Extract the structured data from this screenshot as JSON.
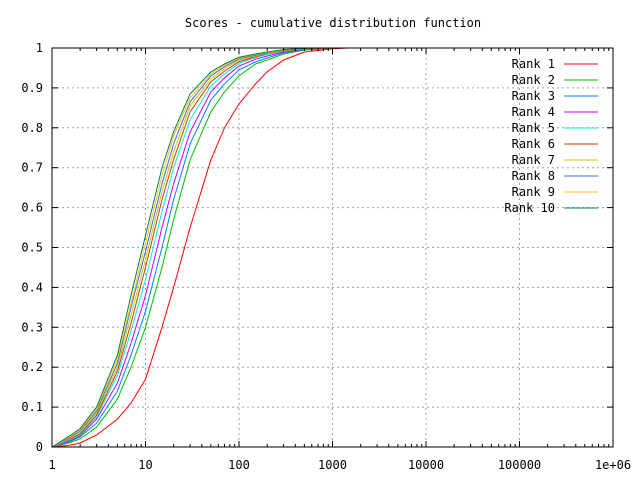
{
  "chart_data": {
    "type": "line",
    "title": "Scores - cumulative distribution function",
    "xlabel": "",
    "ylabel": "",
    "x_scale": "log",
    "xlim": [
      1,
      1000000
    ],
    "ylim": [
      0,
      1
    ],
    "grid": true,
    "legend_position": "top-right",
    "x_ticks": [
      "1",
      "10",
      "100",
      "1000",
      "10000",
      "100000",
      "1e+06"
    ],
    "y_ticks": [
      "0",
      "0.1",
      "0.2",
      "0.3",
      "0.4",
      "0.5",
      "0.6",
      "0.7",
      "0.8",
      "0.9",
      "1"
    ],
    "series": [
      {
        "name": "Rank 1",
        "color": "#ff0000",
        "x": [
          1,
          1.5,
          2,
          3,
          5,
          7,
          10,
          15,
          20,
          30,
          50,
          70,
          100,
          150,
          200,
          300,
          500,
          1000,
          1500
        ],
        "y": [
          0,
          0.004,
          0.01,
          0.03,
          0.07,
          0.11,
          0.17,
          0.3,
          0.4,
          0.55,
          0.72,
          0.8,
          0.86,
          0.91,
          0.94,
          0.97,
          0.99,
          0.998,
          1
        ]
      },
      {
        "name": "Rank 2",
        "color": "#00c000",
        "x": [
          1,
          1.5,
          2,
          3,
          5,
          7,
          10,
          15,
          20,
          30,
          50,
          70,
          100,
          150,
          200,
          300,
          500,
          1000,
          1500
        ],
        "y": [
          0,
          0.01,
          0.02,
          0.05,
          0.12,
          0.2,
          0.3,
          0.45,
          0.57,
          0.72,
          0.84,
          0.89,
          0.93,
          0.96,
          0.97,
          0.985,
          0.995,
          1,
          1
        ]
      },
      {
        "name": "Rank 3",
        "color": "#0080ff",
        "x": [
          1,
          1.5,
          2,
          3,
          5,
          7,
          10,
          15,
          20,
          30,
          50,
          70,
          100,
          150,
          200,
          300,
          500,
          1000,
          1500
        ],
        "y": [
          0,
          0.012,
          0.025,
          0.06,
          0.14,
          0.23,
          0.34,
          0.5,
          0.62,
          0.76,
          0.87,
          0.91,
          0.945,
          0.965,
          0.975,
          0.988,
          0.996,
          1,
          1
        ]
      },
      {
        "name": "Rank 4",
        "color": "#c000ff",
        "x": [
          1,
          1.5,
          2,
          3,
          5,
          7,
          10,
          15,
          20,
          30,
          50,
          70,
          100,
          150,
          200,
          300,
          500,
          1000,
          1500
        ],
        "y": [
          0,
          0.014,
          0.028,
          0.07,
          0.16,
          0.26,
          0.38,
          0.55,
          0.66,
          0.79,
          0.89,
          0.925,
          0.955,
          0.972,
          0.98,
          0.99,
          0.997,
          1,
          1
        ]
      },
      {
        "name": "Rank 5",
        "color": "#00eeee",
        "x": [
          1,
          1.5,
          2,
          3,
          5,
          7,
          10,
          15,
          20,
          30,
          50,
          70,
          100,
          150,
          200,
          300,
          500,
          1000,
          1500
        ],
        "y": [
          0,
          0.016,
          0.03,
          0.075,
          0.18,
          0.29,
          0.42,
          0.59,
          0.7,
          0.82,
          0.905,
          0.935,
          0.962,
          0.976,
          0.984,
          0.992,
          0.998,
          1,
          1
        ]
      },
      {
        "name": "Rank 6",
        "color": "#c04000",
        "x": [
          1,
          1.5,
          2,
          3,
          5,
          7,
          10,
          15,
          20,
          30,
          50,
          70,
          100,
          150,
          200,
          300,
          500,
          1000,
          1500
        ],
        "y": [
          0,
          0.018,
          0.033,
          0.08,
          0.19,
          0.31,
          0.45,
          0.62,
          0.72,
          0.84,
          0.915,
          0.942,
          0.966,
          0.978,
          0.986,
          0.993,
          0.998,
          1,
          1
        ]
      },
      {
        "name": "Rank 7",
        "color": "#c8c800",
        "x": [
          1,
          1.5,
          2,
          3,
          5,
          7,
          10,
          15,
          20,
          30,
          50,
          70,
          100,
          150,
          200,
          300,
          500,
          1000,
          1500
        ],
        "y": [
          0,
          0.02,
          0.036,
          0.085,
          0.2,
          0.33,
          0.47,
          0.64,
          0.74,
          0.855,
          0.922,
          0.948,
          0.97,
          0.98,
          0.987,
          0.994,
          0.998,
          1,
          1
        ]
      },
      {
        "name": "Rank 8",
        "color": "#4169e1",
        "x": [
          1,
          1.5,
          2,
          3,
          5,
          7,
          10,
          15,
          20,
          30,
          50,
          70,
          100,
          150,
          200,
          300,
          500,
          1000,
          1500
        ],
        "y": [
          0,
          0.022,
          0.04,
          0.09,
          0.21,
          0.35,
          0.49,
          0.66,
          0.76,
          0.865,
          0.93,
          0.953,
          0.973,
          0.982,
          0.988,
          0.995,
          0.999,
          1,
          1
        ]
      },
      {
        "name": "Rank 9",
        "color": "#ffc020",
        "x": [
          1,
          1.5,
          2,
          3,
          5,
          7,
          10,
          15,
          20,
          30,
          50,
          70,
          100,
          150,
          200,
          300,
          500,
          1000,
          1500
        ],
        "y": [
          0,
          0.024,
          0.043,
          0.095,
          0.22,
          0.36,
          0.51,
          0.68,
          0.78,
          0.875,
          0.935,
          0.957,
          0.975,
          0.984,
          0.989,
          0.995,
          0.999,
          1,
          1
        ]
      },
      {
        "name": "Rank 10",
        "color": "#008040",
        "x": [
          1,
          1.5,
          2,
          3,
          5,
          7,
          10,
          15,
          20,
          30,
          50,
          70,
          100,
          150,
          200,
          300,
          500,
          1000,
          1500
        ],
        "y": [
          0,
          0.026,
          0.046,
          0.1,
          0.23,
          0.38,
          0.53,
          0.7,
          0.79,
          0.885,
          0.94,
          0.96,
          0.977,
          0.985,
          0.99,
          0.996,
          0.999,
          1,
          1
        ]
      }
    ]
  }
}
